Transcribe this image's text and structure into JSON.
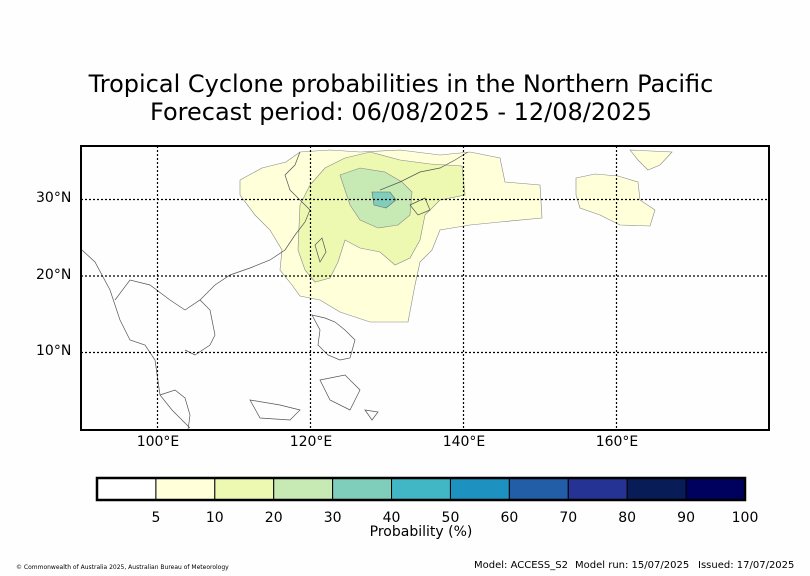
{
  "title": {
    "line1": "Tropical Cyclone probabilities in the Northern Pacific",
    "line2": "Forecast period: 06/08/2025 - 12/08/2025"
  },
  "map": {
    "lat_labels": [
      "30°N",
      "20°N",
      "10°N"
    ],
    "lon_labels": [
      "100°E",
      "120°E",
      "140°E",
      "160°E"
    ],
    "extent": {
      "lon_min": 90,
      "lon_max": 180,
      "lat_min": 0,
      "lat_max": 37
    },
    "probability_regions": [
      {
        "name": "5-10%",
        "color": "#ffffd9"
      },
      {
        "name": "10-20%",
        "color": "#edf8b1"
      },
      {
        "name": "20-30%",
        "color": "#c7e9b4"
      },
      {
        "name": "30-40%",
        "color": "#7fcdbb"
      }
    ]
  },
  "colorbar": {
    "ticks": [
      "5",
      "10",
      "20",
      "30",
      "40",
      "50",
      "60",
      "70",
      "80",
      "90",
      "100"
    ],
    "colors": [
      "#ffffff",
      "#ffffd9",
      "#edf8b1",
      "#c7e9b4",
      "#7fcdbb",
      "#41b6c4",
      "#1d91c0",
      "#225ea8",
      "#253494",
      "#081d58",
      "#00005e"
    ],
    "label": "Probability (%)"
  },
  "footer": {
    "copyright": "© Commonwealth of Australia 2025, Australian Bureau of Meteorology",
    "model": "Model: ACCESS_S2",
    "model_run": "Model run: 15/07/2025",
    "issued": "Issued: 17/07/2025"
  }
}
